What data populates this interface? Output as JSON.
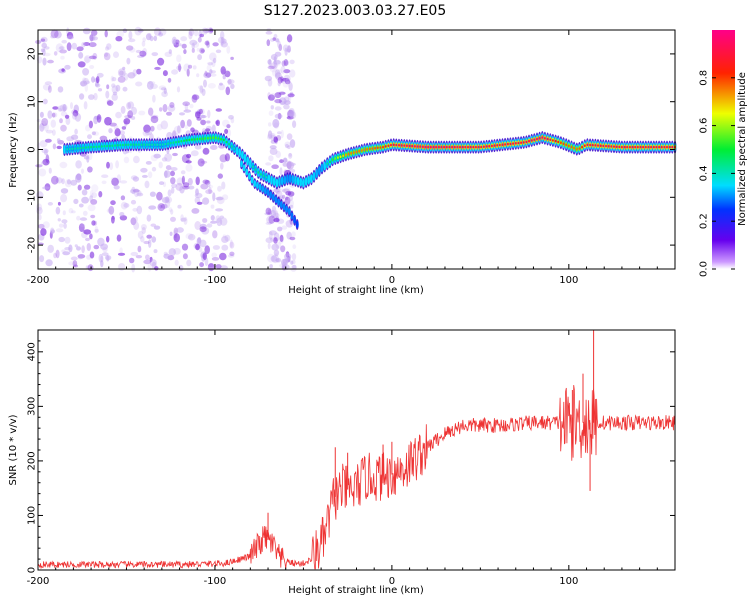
{
  "title": "S127.2023.003.03.27.E05",
  "spectrogram": {
    "xlabel": "Height of straight line (km)",
    "ylabel": "Frequency (Hz)",
    "colorbar_label": "Normalized spectral amplitude",
    "x_ticks": [
      "-200",
      "-100",
      "0",
      "100"
    ],
    "y_ticks": [
      "20",
      "10",
      "0",
      "-10",
      "-20"
    ],
    "colorbar_ticks": [
      "0.0",
      "0.2",
      "0.4",
      "0.6",
      "0.8"
    ]
  },
  "snr": {
    "xlabel": "Height of straight line (km)",
    "ylabel": "SNR (10 * v/v)",
    "x_ticks": [
      "-200",
      "-100",
      "0",
      "100"
    ],
    "y_ticks": [
      "0",
      "100",
      "200",
      "300",
      "400"
    ]
  },
  "chart_data": [
    {
      "type": "heatmap",
      "title": "S127.2023.003.03.27.E05",
      "xlabel": "Height of straight line (km)",
      "ylabel": "Frequency (Hz)",
      "xlim": [
        -200,
        160
      ],
      "ylim": [
        -25,
        25
      ],
      "colorbar": {
        "label": "Normalized spectral amplitude",
        "range": [
          0,
          1
        ],
        "colormap": "rainbow (purple-blue-cyan-green-yellow-red-magenta)"
      },
      "ridge": {
        "x": [
          -185,
          -170,
          -150,
          -130,
          -115,
          -100,
          -95,
          -85,
          -75,
          -65,
          -58,
          -50,
          -45,
          -40,
          -33,
          -25,
          -15,
          -5,
          0,
          20,
          50,
          75,
          85,
          95,
          105,
          110,
          130,
          160
        ],
        "y": [
          0,
          0.5,
          1,
          1,
          2,
          2.5,
          2,
          -1,
          -5,
          -7,
          -6,
          -7,
          -6,
          -4,
          -2,
          -1,
          0,
          0.5,
          1,
          0.5,
          0.5,
          1.5,
          2.5,
          1.5,
          0,
          1,
          0.5,
          0.5
        ],
        "amplitude": [
          0.4,
          0.45,
          0.45,
          0.4,
          0.5,
          0.55,
          0.5,
          0.35,
          0.45,
          0.35,
          0.3,
          0.4,
          0.35,
          0.3,
          0.55,
          0.75,
          0.75,
          0.8,
          0.9,
          0.95,
          0.9,
          0.9,
          0.95,
          0.8,
          0.75,
          0.9,
          0.9,
          0.9
        ]
      },
      "branch": {
        "x": [
          -85,
          -78,
          -70,
          -64,
          -58,
          -53
        ],
        "y": [
          -3,
          -7,
          -9,
          -11,
          -13,
          -16
        ],
        "amplitude": [
          0.35,
          0.35,
          0.3,
          0.3,
          0.3,
          0.25
        ]
      }
    },
    {
      "type": "line",
      "xlabel": "Height of straight line (km)",
      "ylabel": "SNR (10 * v/v)",
      "xlim": [
        -200,
        160
      ],
      "ylim": [
        0,
        440
      ],
      "color": "#ee3333",
      "trend": {
        "x": [
          -200,
          -120,
          -95,
          -88,
          -80,
          -72,
          -68,
          -63,
          -55,
          -50,
          -45,
          -38,
          -33,
          -28,
          -22,
          -15,
          -8,
          0,
          8,
          15,
          20,
          30,
          40,
          60,
          80,
          100,
          160
        ],
        "y": [
          10,
          10,
          12,
          18,
          25,
          60,
          50,
          18,
          12,
          12,
          20,
          60,
          130,
          150,
          145,
          170,
          170,
          175,
          190,
          210,
          225,
          250,
          265,
          265,
          270,
          270,
          270
        ]
      },
      "spikes": [
        {
          "x": -70,
          "y": 105
        },
        {
          "x": -32,
          "y": 225
        },
        {
          "x": -25,
          "y": 215
        },
        {
          "x": -5,
          "y": 230
        },
        {
          "x": 0,
          "y": 235
        },
        {
          "x": 102,
          "y": 330
        },
        {
          "x": 108,
          "y": 360
        },
        {
          "x": 112,
          "y": 145
        },
        {
          "x": 114,
          "y": 440
        }
      ]
    }
  ]
}
